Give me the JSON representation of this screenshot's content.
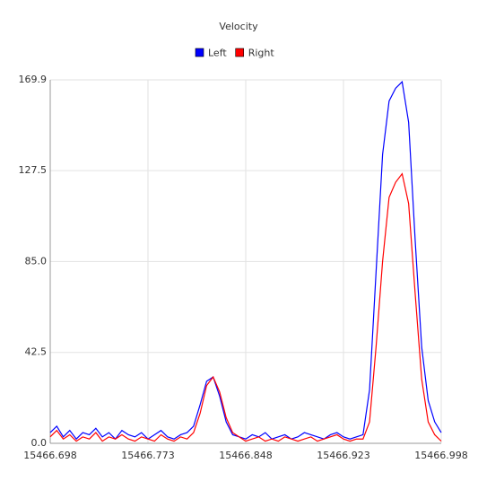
{
  "chart_data": {
    "type": "line",
    "title": "Velocity",
    "x": [
      15466.698,
      15466.703,
      15466.708,
      15466.713,
      15466.718,
      15466.723,
      15466.728,
      15466.733,
      15466.738,
      15466.743,
      15466.748,
      15466.753,
      15466.758,
      15466.763,
      15466.768,
      15466.773,
      15466.778,
      15466.783,
      15466.788,
      15466.793,
      15466.798,
      15466.803,
      15466.808,
      15466.813,
      15466.818,
      15466.823,
      15466.828,
      15466.833,
      15466.838,
      15466.843,
      15466.848,
      15466.853,
      15466.858,
      15466.863,
      15466.868,
      15466.873,
      15466.878,
      15466.883,
      15466.888,
      15466.893,
      15466.898,
      15466.903,
      15466.908,
      15466.913,
      15466.918,
      15466.923,
      15466.928,
      15466.933,
      15466.938,
      15466.943,
      15466.948,
      15466.953,
      15466.958,
      15466.963,
      15466.968,
      15466.973,
      15466.978,
      15466.983,
      15466.988,
      15466.993,
      15466.998
    ],
    "series": [
      {
        "name": "Left",
        "color": "#0000ff",
        "values": [
          5,
          8,
          3,
          6,
          2,
          5,
          4,
          7,
          3,
          5,
          2,
          6,
          4,
          3,
          5,
          2,
          4,
          6,
          3,
          2,
          4,
          5,
          8,
          18,
          29,
          31,
          22,
          10,
          4,
          3,
          2,
          4,
          3,
          5,
          2,
          3,
          4,
          2,
          3,
          5,
          4,
          3,
          2,
          4,
          5,
          3,
          2,
          3,
          4,
          25,
          80,
          135,
          160,
          166,
          169,
          150,
          95,
          45,
          20,
          10,
          5
        ]
      },
      {
        "name": "Right",
        "color": "#ff0000",
        "values": [
          3,
          6,
          2,
          4,
          1,
          3,
          2,
          5,
          1,
          3,
          2,
          4,
          2,
          1,
          3,
          2,
          1,
          4,
          2,
          1,
          3,
          2,
          5,
          14,
          27,
          31,
          24,
          12,
          5,
          3,
          1,
          2,
          3,
          1,
          2,
          1,
          3,
          2,
          1,
          2,
          3,
          1,
          2,
          3,
          4,
          2,
          1,
          2,
          2,
          10,
          45,
          85,
          115,
          122,
          126,
          112,
          70,
          30,
          10,
          4,
          1
        ]
      }
    ],
    "xlim": [
      15466.698,
      15466.998
    ],
    "xticks": [
      15466.698,
      15466.773,
      15466.848,
      15466.923,
      15466.998
    ],
    "ylim": [
      0,
      169.9
    ],
    "yticks": [
      {
        "value": 0,
        "label": "0.0"
      },
      42.5,
      {
        "value": 85,
        "label": "85.0"
      },
      127.5,
      169.9
    ],
    "grid": true
  }
}
